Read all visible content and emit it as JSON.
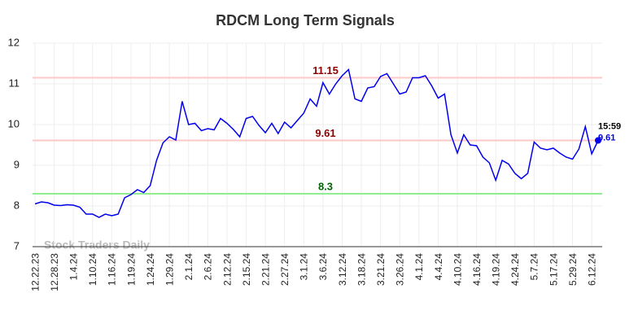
{
  "chart_data": {
    "type": "line",
    "title": "RDCM Long Term Signals",
    "watermark": "Stock Traders Daily",
    "end_time": "15:59",
    "categories": [
      "12.22.23",
      null,
      null,
      "12.28.23",
      null,
      null,
      "1.4.24",
      null,
      null,
      "1.10.24",
      null,
      null,
      "1.16.24",
      null,
      null,
      "1.19.24",
      null,
      null,
      "1.24.24",
      null,
      null,
      "1.29.24",
      null,
      null,
      "2.1.24",
      null,
      null,
      "2.6.24",
      null,
      null,
      "2.12.24",
      null,
      null,
      "2.15.24",
      null,
      null,
      "2.21.24",
      null,
      null,
      "2.27.24",
      null,
      null,
      "3.1.24",
      null,
      null,
      "3.6.24",
      null,
      null,
      "3.12.24",
      null,
      null,
      "3.18.24",
      null,
      null,
      "3.21.24",
      null,
      null,
      "3.26.24",
      null,
      null,
      "4.1.24",
      null,
      null,
      "4.4.24",
      null,
      null,
      "4.10.24",
      null,
      null,
      "4.16.24",
      null,
      null,
      "4.19.24",
      null,
      null,
      "4.24.24",
      null,
      null,
      "5.7.24",
      null,
      null,
      "5.17.24",
      null,
      null,
      "5.29.24",
      null,
      null,
      "6.12.24",
      null
    ],
    "series": [
      {
        "color": "#0000ee",
        "values": [
          8.05,
          8.1,
          8.08,
          8.02,
          8.01,
          8.03,
          8.02,
          7.97,
          7.8,
          7.8,
          7.72,
          7.8,
          7.76,
          7.8,
          8.2,
          8.28,
          8.4,
          8.33,
          8.5,
          9.12,
          9.55,
          9.7,
          9.62,
          10.57,
          10.0,
          10.03,
          9.85,
          9.9,
          9.87,
          10.15,
          10.03,
          9.88,
          9.7,
          10.15,
          10.2,
          9.98,
          9.8,
          10.03,
          9.78,
          10.06,
          9.92,
          10.1,
          10.28,
          10.63,
          10.45,
          11.03,
          10.75,
          11.0,
          11.2,
          11.35,
          10.63,
          10.57,
          10.9,
          10.93,
          11.18,
          11.25,
          11.0,
          10.75,
          10.8,
          11.15,
          11.15,
          11.2,
          10.95,
          10.65,
          10.75,
          9.75,
          9.3,
          9.75,
          9.5,
          9.48,
          9.2,
          9.06,
          8.63,
          9.12,
          9.03,
          8.8,
          8.67,
          8.8,
          9.57,
          9.42,
          9.38,
          9.42,
          9.3,
          9.2,
          9.15,
          9.4,
          9.95,
          9.28,
          9.61
        ]
      }
    ],
    "hlines": [
      {
        "value": 11.15,
        "color": "#ffc8c8",
        "label_color": "#8b0000"
      },
      {
        "value": 9.61,
        "color": "#ffc8c8",
        "label_color": "#8b0000"
      },
      {
        "value": 8.3,
        "color": "#90ee90",
        "label_color": "#006400"
      }
    ],
    "ylim": [
      7,
      12
    ],
    "yticks": [
      7,
      8,
      9,
      10,
      11,
      12
    ],
    "grid": true
  }
}
